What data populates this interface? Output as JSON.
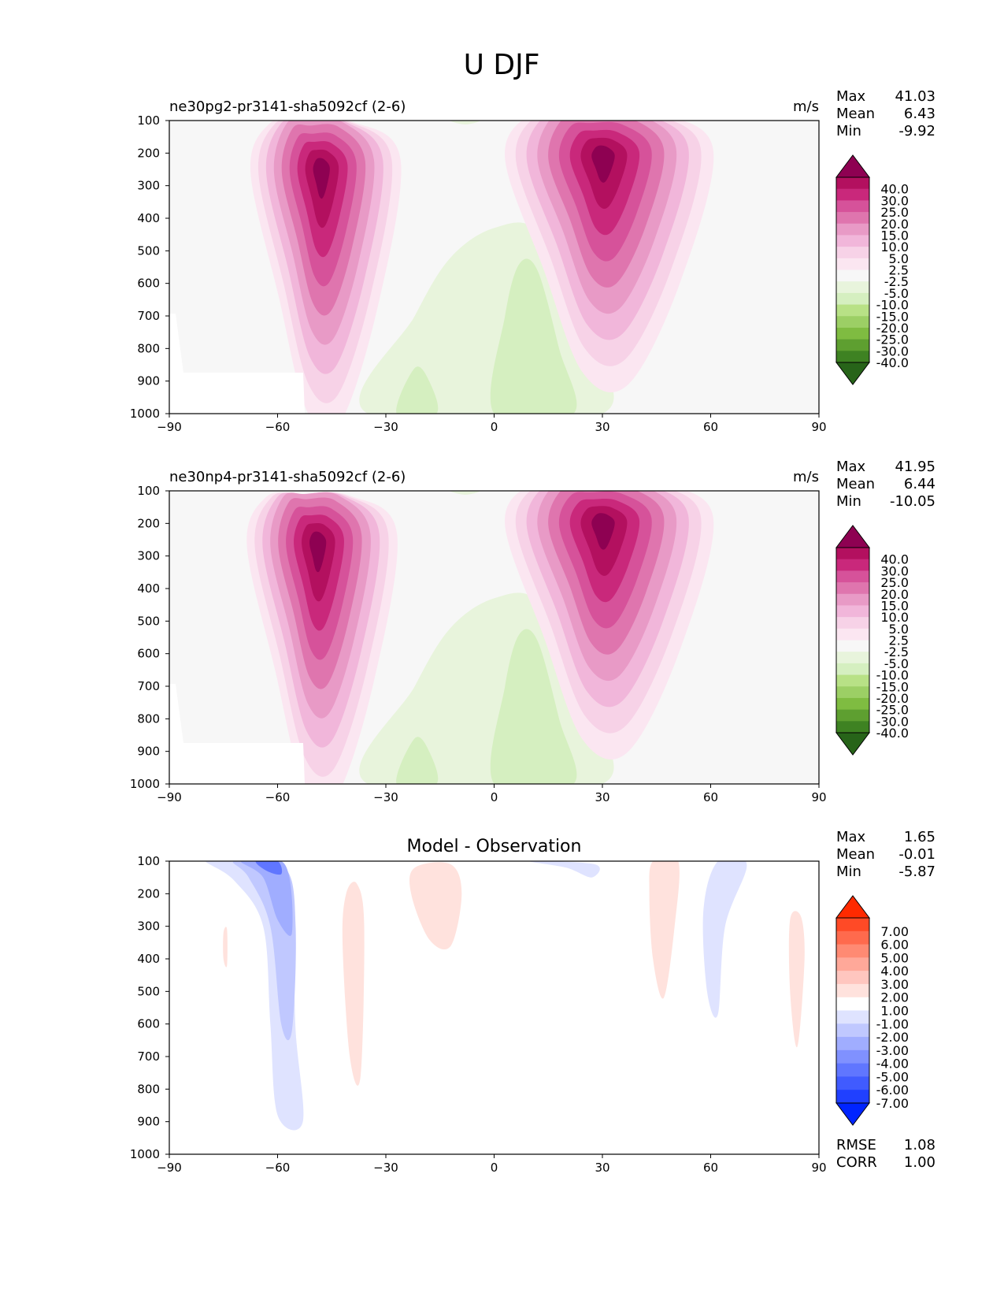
{
  "figure_title": "U DJF",
  "chart_data": [
    {
      "type": "heatmap",
      "title": "ne30pg2-pr3141-sha5092cf (2-6)",
      "units": "m/s",
      "xticks": [
        "−90",
        "−60",
        "−30",
        "0",
        "30",
        "60",
        "90"
      ],
      "yticks": [
        "100",
        "200",
        "300",
        "400",
        "500",
        "600",
        "700",
        "800",
        "900",
        "1000"
      ],
      "xlim": [
        -90,
        90
      ],
      "ylim": [
        1000,
        100
      ],
      "stats": [
        [
          "Max",
          "41.03"
        ],
        [
          "Mean",
          "6.43"
        ],
        [
          "Min",
          "-9.92"
        ]
      ],
      "colorbar": {
        "labels": [
          "40.0",
          "30.0",
          "25.0",
          "20.0",
          "15.0",
          "10.0",
          "5.0",
          "2.5",
          "-2.5",
          "-5.0",
          "-10.0",
          "-15.0",
          "-20.0",
          "-25.0",
          "-30.0",
          "-40.0"
        ],
        "colors": [
          "#8e0152",
          "#b3105f",
          "#c9287b",
          "#d6529a",
          "#df75ae",
          "#e89ac6",
          "#f1b6da",
          "#f7d2e7",
          "#fbe6f1",
          "#f7f7f7",
          "#e8f4dc",
          "#d5efc0",
          "#b8e186",
          "#9ccf65",
          "#7fbc41",
          "#5e9f30",
          "#3e8222",
          "#276419"
        ]
      },
      "jets": [
        {
          "lat": -48,
          "p": 250,
          "max": 38
        },
        {
          "lat": 30,
          "p": 210,
          "max": 41.03
        }
      ]
    },
    {
      "type": "heatmap",
      "title": "ne30np4-pr3141-sha5092cf (2-6)",
      "units": "m/s",
      "xticks": [
        "−90",
        "−60",
        "−30",
        "0",
        "30",
        "60",
        "90"
      ],
      "yticks": [
        "100",
        "200",
        "300",
        "400",
        "500",
        "600",
        "700",
        "800",
        "900",
        "1000"
      ],
      "xlim": [
        -90,
        90
      ],
      "ylim": [
        1000,
        100
      ],
      "stats": [
        [
          "Max",
          "41.95"
        ],
        [
          "Mean",
          "6.44"
        ],
        [
          "Min",
          "-10.05"
        ]
      ],
      "colorbar": {
        "labels": [
          "40.0",
          "30.0",
          "25.0",
          "20.0",
          "15.0",
          "10.0",
          "5.0",
          "2.5",
          "-2.5",
          "-5.0",
          "-10.0",
          "-15.0",
          "-20.0",
          "-25.0",
          "-30.0",
          "-40.0"
        ],
        "colors": [
          "#8e0152",
          "#b3105f",
          "#c9287b",
          "#d6529a",
          "#df75ae",
          "#e89ac6",
          "#f1b6da",
          "#f7d2e7",
          "#fbe6f1",
          "#f7f7f7",
          "#e8f4dc",
          "#d5efc0",
          "#b8e186",
          "#9ccf65",
          "#7fbc41",
          "#5e9f30",
          "#3e8222",
          "#276419"
        ]
      },
      "jets": [
        {
          "lat": -49,
          "p": 260,
          "max": 39
        },
        {
          "lat": 30,
          "p": 200,
          "max": 41.95
        }
      ]
    },
    {
      "type": "heatmap",
      "title": "Model - Observation",
      "units": "",
      "xticks": [
        "−90",
        "−60",
        "−30",
        "0",
        "30",
        "60",
        "90"
      ],
      "yticks": [
        "100",
        "200",
        "300",
        "400",
        "500",
        "600",
        "700",
        "800",
        "900",
        "1000"
      ],
      "xlim": [
        -90,
        90
      ],
      "ylim": [
        1000,
        100
      ],
      "stats": [
        [
          "Max",
          "1.65"
        ],
        [
          "Mean",
          "-0.01"
        ],
        [
          "Min",
          "-5.87"
        ]
      ],
      "extra_stats": [
        [
          "RMSE",
          "1.08"
        ],
        [
          "CORR",
          "1.00"
        ]
      ],
      "colorbar": {
        "labels": [
          "7.00",
          "6.00",
          "5.00",
          "4.00",
          "3.00",
          "2.00",
          "1.00",
          "-1.00",
          "-2.00",
          "-3.00",
          "-4.00",
          "-5.00",
          "-6.00",
          "-7.00"
        ],
        "colors": [
          "#ff2a00",
          "#ff4a26",
          "#ff6a4d",
          "#ff8a73",
          "#ffa899",
          "#ffc6bf",
          "#ffe2dd",
          "#ffffff",
          "#dfe3ff",
          "#c0c8ff",
          "#a0adff",
          "#8091ff",
          "#6076ff",
          "#405bff",
          "#2040ff",
          "#0024ff"
        ]
      },
      "differences": [
        {
          "lat": -57,
          "p": 150,
          "value": -5.87
        },
        {
          "lat": -38,
          "p": 400,
          "value": 1.2
        },
        {
          "lat": -15,
          "p": 200,
          "value": 1.3
        },
        {
          "lat": 48,
          "p": 300,
          "value": 1.65
        },
        {
          "lat": 62,
          "p": 350,
          "value": -1.4
        }
      ]
    }
  ]
}
